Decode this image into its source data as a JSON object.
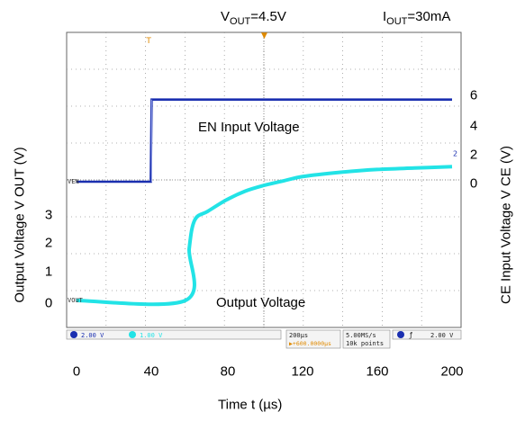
{
  "chart_data": {
    "type": "line",
    "title_vout_main": "V",
    "title_vout_sub": "OUT",
    "title_vout_tail": "=4.5V",
    "title_iout_main": "I",
    "title_iout_sub": "OUT",
    "title_iout_tail": "=30mA",
    "xlabel": "Time t (µs)",
    "ylabel_left": "Output Voltage V OUT (V)",
    "ylabel_right": "CE Input Voltage V CE (V)",
    "xlim": [
      0,
      200
    ],
    "x_ticks": [
      "0",
      "40",
      "80",
      "120",
      "160",
      "200"
    ],
    "y_left_ticks": [
      "3",
      "2",
      "1",
      "0"
    ],
    "y_right_ticks": [
      "6",
      "4",
      "2",
      "0"
    ],
    "annotations": {
      "en_input": "EN Input Voltage",
      "output_voltage": "Output Voltage"
    },
    "series": [
      {
        "name": "VEN",
        "color": "#1a2fb0",
        "x": [
          0,
          39.5,
          40,
          200
        ],
        "y": [
          0,
          0,
          5.6,
          5.6
        ]
      },
      {
        "name": "VOUT",
        "color": "#22e3e6",
        "x": [
          0,
          58,
          60,
          63,
          70,
          80,
          90,
          100,
          110,
          120,
          140,
          160,
          180,
          200
        ],
        "y": [
          0,
          0,
          1.8,
          2.8,
          3.1,
          3.5,
          3.8,
          4.0,
          4.15,
          4.3,
          4.45,
          4.55,
          4.6,
          4.65
        ]
      }
    ],
    "scope_status": {
      "ch1": "2.00 V",
      "ch2": "1.00 V",
      "timebase": "200µs",
      "trigger_pos": "▶+600.0000µs",
      "rate": "5.00MS/s",
      "points": "10k points",
      "trigger": "2.00 V"
    },
    "trace_labels": {
      "ven": "VEN",
      "vout": "VOUT"
    },
    "trigger_marker": "T",
    "level_marker": "2"
  }
}
